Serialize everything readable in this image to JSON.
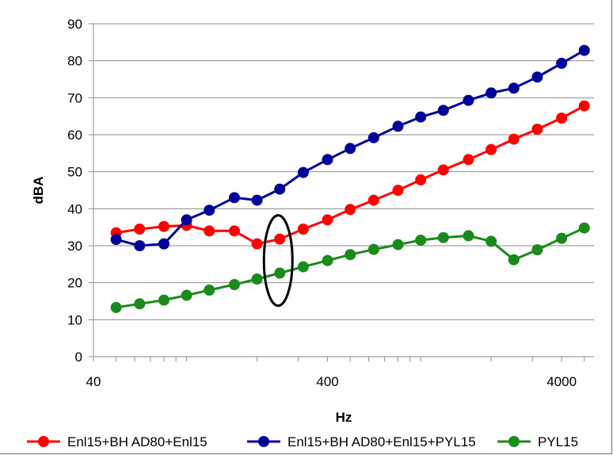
{
  "chart_data": {
    "type": "line",
    "title": "",
    "xlabel": "Hz",
    "ylabel": "dBA",
    "x_scale": "log",
    "xlim": [
      40,
      5500
    ],
    "ylim": [
      0,
      90
    ],
    "x_ticks": [
      40,
      400,
      4000
    ],
    "x_tick_labels": [
      "40",
      "400",
      "4000"
    ],
    "y_ticks": [
      0,
      10,
      20,
      30,
      40,
      50,
      60,
      70,
      80,
      90
    ],
    "y_tick_labels": [
      "0",
      "10",
      "20",
      "30",
      "40",
      "50",
      "60",
      "70",
      "80",
      "90"
    ],
    "grid": "horizontal",
    "legend_position": "bottom",
    "x": [
      50,
      63,
      80,
      100,
      125,
      160,
      200,
      250,
      315,
      400,
      500,
      630,
      800,
      1000,
      1250,
      1600,
      2000,
      2500,
      3150,
      4000,
      5000
    ],
    "series": [
      {
        "name": "Enl15+BH AD80+Enl15",
        "color": "#ff0000",
        "values": [
          33.5,
          34.5,
          35.2,
          35.5,
          34.0,
          34.0,
          30.5,
          31.8,
          34.5,
          37.0,
          39.8,
          42.3,
          45.0,
          47.8,
          50.5,
          53.3,
          56.0,
          58.8,
          61.5,
          64.5,
          67.8
        ]
      },
      {
        "name": "Enl15+BH AD80+Enl15+PYL15",
        "color": "#000099",
        "values": [
          31.7,
          30.0,
          30.5,
          37.0,
          39.6,
          43.0,
          42.3,
          45.3,
          49.8,
          53.3,
          56.3,
          59.2,
          62.3,
          64.8,
          66.6,
          69.3,
          71.3,
          72.6,
          75.6,
          79.3,
          82.8
        ]
      },
      {
        "name": "PYL15",
        "color": "#1a8a1a",
        "values": [
          13.3,
          14.3,
          15.3,
          16.6,
          18.0,
          19.5,
          21.0,
          22.6,
          24.3,
          26.0,
          27.6,
          29.0,
          30.3,
          31.5,
          32.2,
          32.7,
          31.2,
          26.2,
          28.9,
          32.0,
          34.8
        ]
      }
    ],
    "annotations": [
      {
        "shape": "ellipse",
        "outline": "#000000",
        "x": 250,
        "y": 26
      }
    ]
  }
}
